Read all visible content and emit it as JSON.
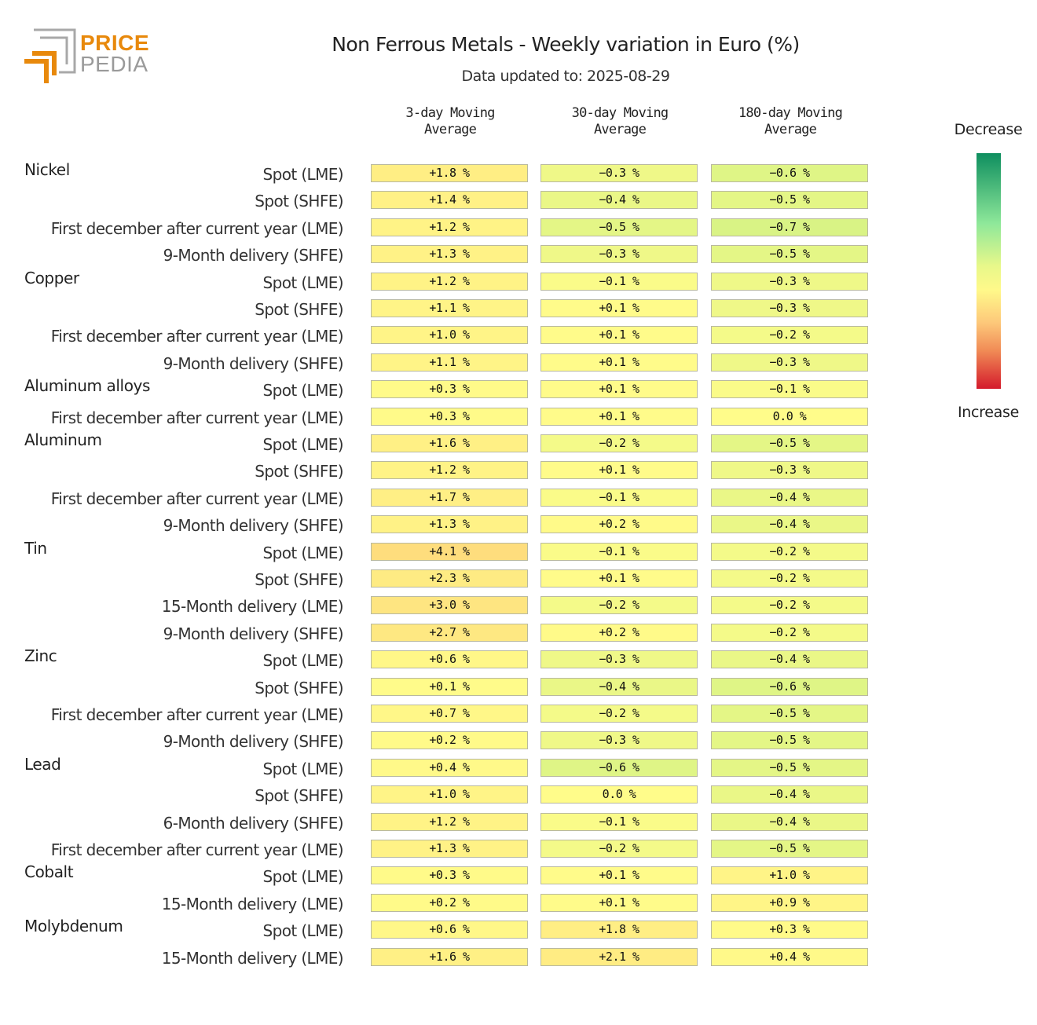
{
  "header": {
    "title": "Non Ferrous Metals - Weekly variation in Euro (%)",
    "subtitle": "Data updated to: 2025-08-29"
  },
  "logo": {
    "word1": "PRICE",
    "word2": "PEDIA",
    "color_primary": "#e8890c",
    "color_secondary": "#9a9a9a"
  },
  "legend": {
    "top_label": "Decrease",
    "bottom_label": "Increase"
  },
  "chart_data": {
    "type": "table",
    "title": "Non Ferrous Metals - Weekly variation in Euro (%)",
    "subtitle": "Data updated to: 2025-08-29",
    "columns": [
      "3-day Moving Average",
      "30-day Moving Average",
      "180-day Moving Average"
    ],
    "unit": "%",
    "color_scale": {
      "decrease": "#0e8e5f",
      "neutral": "#fff98a",
      "increase": "#d41a2c"
    },
    "groups": [
      {
        "name": "Nickel",
        "rows": [
          {
            "label": "Spot (LME)",
            "values": [
              1.8,
              -0.3,
              -0.6
            ]
          },
          {
            "label": "Spot (SHFE)",
            "values": [
              1.4,
              -0.4,
              -0.5
            ]
          },
          {
            "label": "First december after current year (LME)",
            "values": [
              1.2,
              -0.5,
              -0.7
            ]
          },
          {
            "label": "9-Month delivery (SHFE)",
            "values": [
              1.3,
              -0.3,
              -0.5
            ]
          }
        ]
      },
      {
        "name": "Copper",
        "rows": [
          {
            "label": "Spot (LME)",
            "values": [
              1.2,
              -0.1,
              -0.3
            ]
          },
          {
            "label": "Spot (SHFE)",
            "values": [
              1.1,
              0.1,
              -0.3
            ]
          },
          {
            "label": "First december after current year (LME)",
            "values": [
              1.0,
              0.1,
              -0.2
            ]
          },
          {
            "label": "9-Month delivery (SHFE)",
            "values": [
              1.1,
              0.1,
              -0.3
            ]
          }
        ]
      },
      {
        "name": "Aluminum alloys",
        "rows": [
          {
            "label": "Spot (LME)",
            "values": [
              0.3,
              0.1,
              -0.1
            ]
          },
          {
            "label": "First december after current year (LME)",
            "values": [
              0.3,
              0.1,
              0.0
            ]
          }
        ]
      },
      {
        "name": "Aluminum",
        "rows": [
          {
            "label": "Spot (LME)",
            "values": [
              1.6,
              -0.2,
              -0.5
            ]
          },
          {
            "label": "Spot (SHFE)",
            "values": [
              1.2,
              0.1,
              -0.3
            ]
          },
          {
            "label": "First december after current year (LME)",
            "values": [
              1.7,
              -0.1,
              -0.4
            ]
          },
          {
            "label": "9-Month delivery (SHFE)",
            "values": [
              1.3,
              0.2,
              -0.4
            ]
          }
        ]
      },
      {
        "name": "Tin",
        "rows": [
          {
            "label": "Spot (LME)",
            "values": [
              4.1,
              -0.1,
              -0.2
            ]
          },
          {
            "label": "Spot (SHFE)",
            "values": [
              2.3,
              0.1,
              -0.2
            ]
          },
          {
            "label": "15-Month delivery (LME)",
            "values": [
              3.0,
              -0.2,
              -0.2
            ]
          },
          {
            "label": "9-Month delivery (SHFE)",
            "values": [
              2.7,
              0.2,
              -0.2
            ]
          }
        ]
      },
      {
        "name": "Zinc",
        "rows": [
          {
            "label": "Spot (LME)",
            "values": [
              0.6,
              -0.3,
              -0.4
            ]
          },
          {
            "label": "Spot (SHFE)",
            "values": [
              0.1,
              -0.4,
              -0.6
            ]
          },
          {
            "label": "First december after current year (LME)",
            "values": [
              0.7,
              -0.2,
              -0.5
            ]
          },
          {
            "label": "9-Month delivery (SHFE)",
            "values": [
              0.2,
              -0.3,
              -0.5
            ]
          }
        ]
      },
      {
        "name": "Lead",
        "rows": [
          {
            "label": "Spot (LME)",
            "values": [
              0.4,
              -0.6,
              -0.5
            ]
          },
          {
            "label": "Spot (SHFE)",
            "values": [
              1.0,
              0.0,
              -0.4
            ]
          },
          {
            "label": "6-Month delivery (SHFE)",
            "values": [
              1.2,
              -0.1,
              -0.4
            ]
          },
          {
            "label": "First december after current year (LME)",
            "values": [
              1.3,
              -0.2,
              -0.5
            ]
          }
        ]
      },
      {
        "name": "Cobalt",
        "rows": [
          {
            "label": "Spot (LME)",
            "values": [
              0.3,
              0.1,
              1.0
            ]
          },
          {
            "label": "15-Month delivery (LME)",
            "values": [
              0.2,
              0.1,
              0.9
            ]
          }
        ]
      },
      {
        "name": "Molybdenum",
        "rows": [
          {
            "label": "Spot (LME)",
            "values": [
              0.6,
              1.8,
              0.3
            ]
          },
          {
            "label": "15-Month delivery (LME)",
            "values": [
              1.6,
              2.1,
              0.4
            ]
          }
        ]
      }
    ]
  }
}
